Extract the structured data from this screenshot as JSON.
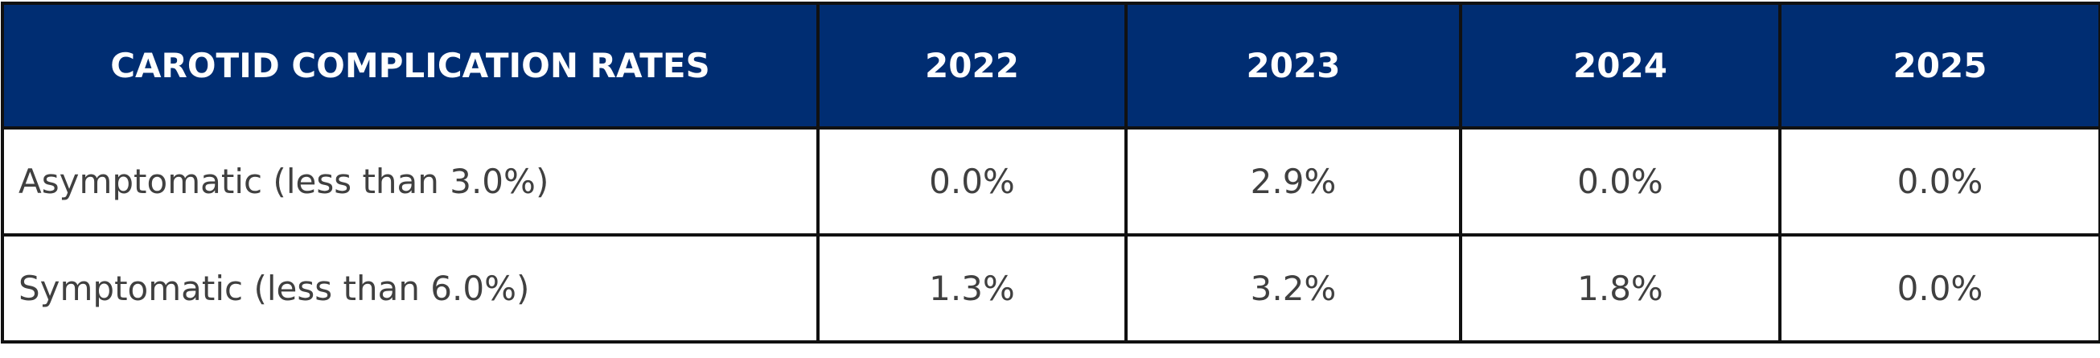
{
  "table": {
    "header": [
      "CAROTID COMPLICATION RATES",
      "2022",
      "2023",
      "2024",
      "2025"
    ],
    "rows": [
      [
        "Asymptomatic (less than 3.0%)",
        "0.0%",
        "2.9%",
        "0.0%",
        "0.0%"
      ],
      [
        "Symptomatic (less than 6.0%)",
        "1.3%",
        "3.2%",
        "1.8%",
        "0.0%"
      ]
    ]
  }
}
